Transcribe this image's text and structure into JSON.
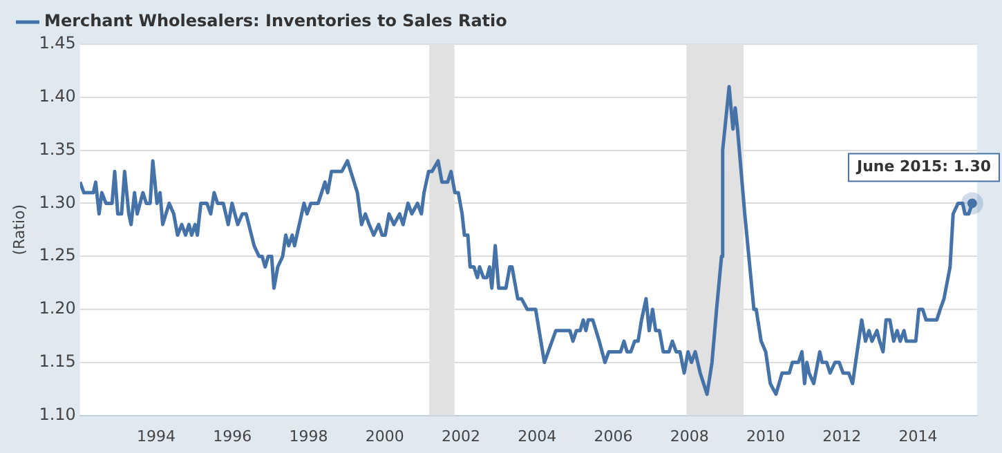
{
  "chart_data": {
    "type": "line",
    "ylabel": "(Ratio)",
    "legend": "top left",
    "grid": "y",
    "marker": "none",
    "line_style": "solid",
    "xlim": [
      1992,
      2015.55
    ],
    "xticks": [
      1994,
      1996,
      1998,
      2000,
      2002,
      2004,
      2006,
      2008,
      2010,
      2012,
      2014
    ],
    "ylim": [
      1.1,
      1.45
    ],
    "yticks": [
      {
        "value": 1.1,
        "label": "1.10"
      },
      {
        "value": 1.15,
        "label": "1.15"
      },
      {
        "value": 1.2,
        "label": "1.20"
      },
      {
        "value": 1.25,
        "label": "1.25"
      },
      {
        "value": 1.3,
        "label": "1.30"
      },
      {
        "value": 1.35,
        "label": "1.35"
      },
      {
        "value": 1.4,
        "label": "1.40"
      },
      {
        "value": 1.45,
        "label": "1.45"
      }
    ],
    "bands": [
      {
        "axis": "x",
        "from": 2001.17,
        "to": 2001.83,
        "color": "#e1e1e1"
      },
      {
        "axis": "x",
        "from": 2007.92,
        "to": 2009.42,
        "color": "#e1e1e1"
      }
    ],
    "annotations": [
      {
        "text": "June 2015: 1.30",
        "x": 2015.42,
        "y": 1.3
      }
    ],
    "series": [
      {
        "name": "Merchant Wholesalers: Inventories to Sales Ratio",
        "color": "#4572a7",
        "x": [
          1992.0,
          1992.1,
          1992.35,
          1992.41,
          1992.5,
          1992.57,
          1992.68,
          1992.84,
          1992.91,
          1992.99,
          1993.09,
          1993.17,
          1993.28,
          1993.34,
          1993.43,
          1993.5,
          1993.65,
          1993.74,
          1993.84,
          1993.91,
          1994.02,
          1994.1,
          1994.17,
          1994.34,
          1994.46,
          1994.56,
          1994.67,
          1994.77,
          1994.86,
          1994.93,
          1995.02,
          1995.08,
          1995.17,
          1995.33,
          1995.43,
          1995.52,
          1995.61,
          1995.76,
          1995.89,
          1995.99,
          1996.14,
          1996.26,
          1996.36,
          1996.57,
          1996.7,
          1996.78,
          1996.86,
          1996.94,
          1997.03,
          1997.09,
          1997.19,
          1997.32,
          1997.4,
          1997.48,
          1997.57,
          1997.63,
          1997.88,
          1997.96,
          1998.06,
          1998.25,
          1998.43,
          1998.5,
          1998.6,
          1998.87,
          1999.02,
          1999.28,
          1999.39,
          1999.49,
          1999.59,
          1999.71,
          1999.84,
          1999.93,
          2000.01,
          2000.11,
          2000.24,
          2000.39,
          2000.48,
          2000.61,
          2000.71,
          2000.86,
          2000.96,
          2001.03,
          2001.15,
          2001.24,
          2001.4,
          2001.5,
          2001.65,
          2001.74,
          2001.84,
          2001.93,
          2002.03,
          2002.09,
          2002.18,
          2002.24,
          2002.34,
          2002.43,
          2002.49,
          2002.59,
          2002.68,
          2002.75,
          2002.81,
          2002.9,
          2002.99,
          2003.18,
          2003.28,
          2003.34,
          2003.49,
          2003.59,
          2003.74,
          2003.96,
          2004.19,
          2004.49,
          2004.86,
          2004.94,
          2005.03,
          2005.13,
          2005.21,
          2005.28,
          2005.34,
          2005.46,
          2005.63,
          2005.78,
          2005.88,
          2006.19,
          2006.28,
          2006.36,
          2006.46,
          2006.56,
          2006.65,
          2006.74,
          2006.86,
          2006.94,
          2007.03,
          2007.11,
          2007.21,
          2007.31,
          2007.46,
          2007.55,
          2007.65,
          2007.75,
          2007.86,
          2007.96,
          2008.05,
          2008.15,
          2008.28,
          2008.46,
          2008.59,
          2008.71,
          2008.84,
          2008.87,
          2009.04,
          2009.14,
          2009.2,
          2009.26,
          2009.45,
          2009.69,
          2009.75,
          2009.88,
          2010.0,
          2010.12,
          2010.27,
          2010.43,
          2010.62,
          2010.7,
          2010.86,
          2010.95,
          2011.02,
          2011.08,
          2011.14,
          2011.26,
          2011.42,
          2011.48,
          2011.6,
          2011.69,
          2011.82,
          2011.93,
          2012.03,
          2012.18,
          2012.28,
          2012.44,
          2012.52,
          2012.62,
          2012.71,
          2012.79,
          2012.92,
          2012.99,
          2013.08,
          2013.16,
          2013.26,
          2013.36,
          2013.45,
          2013.53,
          2013.63,
          2013.69,
          2013.94,
          2014.02,
          2014.12,
          2014.21,
          2014.49,
          2014.58,
          2014.68,
          2014.84,
          2014.92,
          2015.05,
          2015.17,
          2015.23,
          2015.33,
          2015.42
        ],
        "values": [
          1.32,
          1.31,
          1.31,
          1.32,
          1.29,
          1.31,
          1.3,
          1.3,
          1.33,
          1.29,
          1.29,
          1.33,
          1.29,
          1.28,
          1.31,
          1.29,
          1.31,
          1.3,
          1.3,
          1.34,
          1.3,
          1.31,
          1.28,
          1.3,
          1.29,
          1.27,
          1.28,
          1.27,
          1.28,
          1.27,
          1.28,
          1.27,
          1.3,
          1.3,
          1.29,
          1.31,
          1.3,
          1.3,
          1.28,
          1.3,
          1.28,
          1.29,
          1.29,
          1.26,
          1.25,
          1.25,
          1.24,
          1.25,
          1.25,
          1.22,
          1.24,
          1.25,
          1.27,
          1.26,
          1.27,
          1.26,
          1.3,
          1.29,
          1.3,
          1.3,
          1.32,
          1.31,
          1.33,
          1.33,
          1.34,
          1.31,
          1.28,
          1.29,
          1.28,
          1.27,
          1.28,
          1.27,
          1.27,
          1.29,
          1.28,
          1.29,
          1.28,
          1.3,
          1.29,
          1.3,
          1.29,
          1.31,
          1.33,
          1.33,
          1.34,
          1.32,
          1.32,
          1.33,
          1.31,
          1.31,
          1.29,
          1.27,
          1.27,
          1.24,
          1.24,
          1.23,
          1.24,
          1.23,
          1.23,
          1.24,
          1.22,
          1.26,
          1.22,
          1.22,
          1.24,
          1.24,
          1.21,
          1.21,
          1.2,
          1.2,
          1.15,
          1.18,
          1.18,
          1.17,
          1.18,
          1.18,
          1.19,
          1.18,
          1.19,
          1.19,
          1.17,
          1.15,
          1.16,
          1.16,
          1.17,
          1.16,
          1.16,
          1.17,
          1.17,
          1.19,
          1.21,
          1.18,
          1.2,
          1.18,
          1.18,
          1.16,
          1.16,
          1.17,
          1.16,
          1.16,
          1.14,
          1.16,
          1.15,
          1.16,
          1.14,
          1.12,
          1.15,
          1.2,
          1.25,
          1.35,
          1.41,
          1.37,
          1.39,
          1.37,
          1.29,
          1.2,
          1.2,
          1.17,
          1.16,
          1.13,
          1.12,
          1.14,
          1.14,
          1.15,
          1.15,
          1.16,
          1.13,
          1.15,
          1.14,
          1.13,
          1.16,
          1.15,
          1.15,
          1.14,
          1.15,
          1.15,
          1.14,
          1.14,
          1.13,
          1.17,
          1.19,
          1.17,
          1.18,
          1.17,
          1.18,
          1.17,
          1.16,
          1.19,
          1.19,
          1.17,
          1.18,
          1.17,
          1.18,
          1.17,
          1.17,
          1.2,
          1.2,
          1.19,
          1.19,
          1.2,
          1.21,
          1.24,
          1.29,
          1.3,
          1.3,
          1.29,
          1.29,
          1.3
        ]
      }
    ]
  }
}
